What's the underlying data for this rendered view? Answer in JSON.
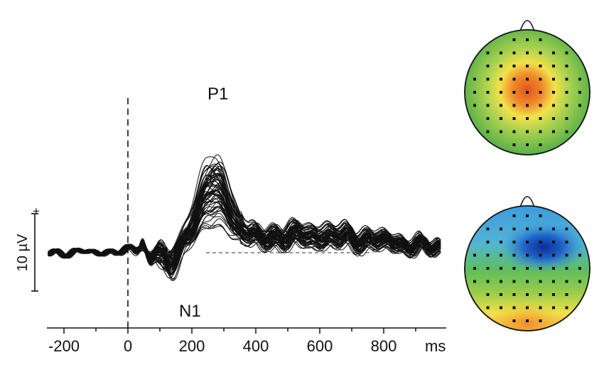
{
  "chart_data": [
    {
      "type": "line",
      "title": "",
      "xlabel": "",
      "x_unit": "ms",
      "xlim": [
        -250,
        980
      ],
      "x_ticks": [
        -200,
        0,
        200,
        400,
        600,
        800
      ],
      "x_tick_labels": [
        "-200",
        "0",
        "200",
        "400",
        "600",
        "800"
      ],
      "ylabel": "",
      "scale_bar": {
        "label": "10 µV",
        "polarity": "+",
        "value_uV": 10
      },
      "stimulus_onset_ms": 0,
      "n_traces": 64,
      "peaks": [
        {
          "label": "P1",
          "latency_ms": 265,
          "amplitude_uV_max": 11
        },
        {
          "label": "N1",
          "latency_ms": 125,
          "amplitude_uV_max": -4.3
        }
      ],
      "components": [
        {
          "center_ms": 45,
          "width_ms": 9,
          "amp_uV": 1.2
        },
        {
          "center_ms": 70,
          "width_ms": 11,
          "amp_uV": -1.3
        },
        {
          "center_ms": 105,
          "width_ms": 18,
          "amp_uV": 1.4
        },
        {
          "center_ms": 125,
          "width_ms": 22,
          "amp_uV": -4.3
        },
        {
          "center_ms": 268,
          "width_ms": 48,
          "amp_uV": 11
        },
        {
          "center_ms": 560,
          "width_ms": 260,
          "amp_uV": 2.5
        }
      ],
      "grid": false,
      "legend": "none"
    },
    {
      "type": "heatmap",
      "name": "scalp-topography-p1",
      "view": "top",
      "pattern": "central-positive",
      "colormap": [
        "#1a3fa0",
        "#3d8fe0",
        "#5fbf5a",
        "#f2e24a",
        "#e2551c"
      ],
      "electrode_grid": "64-channel"
    },
    {
      "type": "heatmap",
      "name": "scalp-topography-n1",
      "view": "top",
      "pattern": "frontal-negative",
      "colormap": [
        "#1a3fa0",
        "#3d8fe0",
        "#5fbf5a",
        "#f2e24a",
        "#e2551c"
      ],
      "electrode_grid": "64-channel"
    }
  ],
  "labels": {
    "p1": "P1",
    "n1": "N1",
    "units": "ms",
    "scale": "10 µV",
    "plus": "+"
  }
}
